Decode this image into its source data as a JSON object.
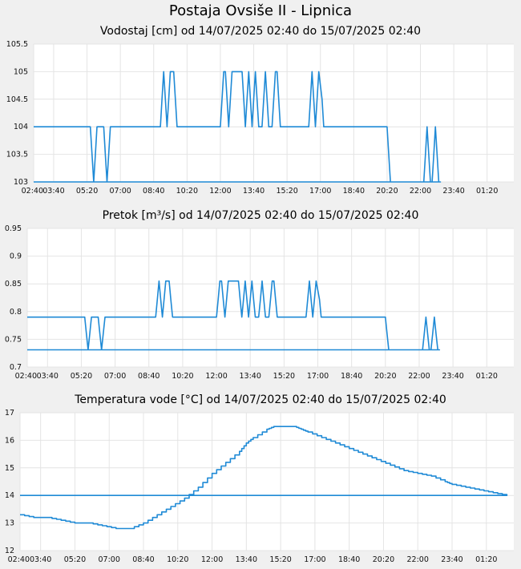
{
  "page": {
    "title": "Postaja Ovsiše II - Lipnica"
  },
  "chart_data": [
    {
      "type": "line",
      "title": "Vodostaj [cm] od 14/07/2025 02:40 do 15/07/2025 02:40",
      "xlabel": "",
      "ylabel": "",
      "ylim": [
        103,
        105.5
      ],
      "y_ticks": [
        "103",
        "103.5",
        "104",
        "104.5",
        "105",
        "105.5"
      ],
      "x_ticks": [
        "03:40",
        "05:20",
        "07:00",
        "08:40",
        "10:20",
        "12:00",
        "13:40",
        "15:20",
        "17:00",
        "18:40",
        "20:20",
        "22:00",
        "23:40",
        "01:20",
        "02:40"
      ],
      "grid": true,
      "color": "#1f8ad6",
      "series": [
        {
          "x": [
            "02:40",
            "05:30",
            "05:35",
            "05:40",
            "05:45",
            "05:50",
            "06:10",
            "06:15",
            "06:20",
            "06:25",
            "06:30",
            "09:00",
            "09:05",
            "09:10",
            "09:15",
            "09:20",
            "09:25",
            "09:30",
            "09:35",
            "09:40",
            "09:45",
            "09:50",
            "09:55",
            "12:00",
            "12:05",
            "12:10",
            "12:15",
            "12:20",
            "12:25",
            "12:30",
            "12:35",
            "12:40",
            "13:05",
            "13:10",
            "13:15",
            "13:20",
            "13:25",
            "13:30",
            "13:35",
            "13:40",
            "13:45",
            "13:50",
            "13:55",
            "14:00",
            "14:05",
            "14:10",
            "14:15",
            "14:20",
            "14:25",
            "14:30",
            "14:35",
            "14:40",
            "14:45",
            "14:50",
            "14:55",
            "15:00",
            "15:05",
            "15:10",
            "16:25",
            "16:30",
            "16:35",
            "16:40",
            "16:45",
            "16:50",
            "16:55",
            "17:05",
            "17:10",
            "17:15",
            "17:20",
            "17:25",
            "20:20",
            "20:25",
            "20:30",
            "20:35",
            "22:10",
            "22:15",
            "22:20",
            "22:25",
            "22:30",
            "22:35",
            "22:40",
            "22:45",
            "22:50",
            "22:55",
            "23:00",
            "02:40"
          ],
          "y": [
            104,
            104,
            103.5,
            103,
            103.5,
            104,
            104,
            103.5,
            103,
            103.5,
            104,
            104,
            104.5,
            105,
            104.5,
            104,
            104.5,
            105,
            105,
            105,
            104.5,
            104,
            104,
            104,
            104.5,
            105,
            105,
            104.5,
            104,
            104.5,
            105,
            105,
            105,
            104.5,
            104,
            104.5,
            105,
            104.5,
            104,
            104.5,
            105,
            104.5,
            104,
            104,
            104,
            104.5,
            105,
            104.5,
            104,
            104,
            104,
            104.5,
            105,
            105,
            104.5,
            104,
            104,
            104,
            104,
            104.5,
            105,
            104.5,
            104,
            104.5,
            105,
            104.5,
            104,
            104,
            104,
            104,
            104,
            103.5,
            103,
            103,
            103,
            103.5,
            104,
            103.5,
            103,
            103,
            103.5,
            104,
            103.5,
            103,
            103,
            103
          ]
        }
      ]
    },
    {
      "type": "line",
      "title": "Pretok [m³/s] od 14/07/2025 02:40 do 15/07/2025 02:40",
      "xlabel": "",
      "ylabel": "",
      "ylim": [
        0.7,
        0.95
      ],
      "y_ticks": [
        "0.7",
        "0.75",
        "0.8",
        "0.85",
        "0.9",
        "0.95"
      ],
      "x_ticks": [
        "03:40",
        "05:20",
        "07:00",
        "08:40",
        "10:20",
        "12:00",
        "13:40",
        "15:20",
        "17:00",
        "18:40",
        "20:20",
        "22:00",
        "23:40",
        "01:20",
        "02:40"
      ],
      "grid": true,
      "color": "#1f8ad6",
      "series": [
        {
          "x": [
            "02:40",
            "05:30",
            "05:35",
            "05:40",
            "05:45",
            "05:50",
            "06:10",
            "06:15",
            "06:20",
            "06:25",
            "06:30",
            "09:00",
            "09:05",
            "09:10",
            "09:15",
            "09:20",
            "09:25",
            "09:30",
            "09:35",
            "09:40",
            "09:45",
            "09:50",
            "09:55",
            "12:00",
            "12:05",
            "12:10",
            "12:15",
            "12:20",
            "12:25",
            "12:30",
            "12:35",
            "12:40",
            "13:05",
            "13:10",
            "13:15",
            "13:20",
            "13:25",
            "13:30",
            "13:35",
            "13:40",
            "13:45",
            "13:50",
            "13:55",
            "14:00",
            "14:05",
            "14:10",
            "14:15",
            "14:20",
            "14:25",
            "14:30",
            "14:35",
            "14:40",
            "14:45",
            "14:50",
            "14:55",
            "15:00",
            "15:05",
            "15:10",
            "16:25",
            "16:30",
            "16:35",
            "16:40",
            "16:45",
            "16:50",
            "16:55",
            "17:05",
            "17:10",
            "17:15",
            "17:20",
            "17:25",
            "20:20",
            "20:25",
            "20:30",
            "20:35",
            "22:10",
            "22:15",
            "22:20",
            "22:25",
            "22:30",
            "22:35",
            "22:40",
            "22:45",
            "22:50",
            "22:55",
            "23:00",
            "02:40"
          ],
          "y": [
            0.79,
            0.79,
            0.76,
            0.731,
            0.76,
            0.79,
            0.79,
            0.76,
            0.731,
            0.76,
            0.79,
            0.79,
            0.822,
            0.855,
            0.822,
            0.79,
            0.822,
            0.855,
            0.855,
            0.855,
            0.822,
            0.79,
            0.79,
            0.79,
            0.822,
            0.855,
            0.855,
            0.822,
            0.79,
            0.822,
            0.855,
            0.855,
            0.855,
            0.822,
            0.79,
            0.822,
            0.855,
            0.822,
            0.79,
            0.822,
            0.855,
            0.822,
            0.79,
            0.79,
            0.79,
            0.822,
            0.855,
            0.822,
            0.79,
            0.79,
            0.79,
            0.822,
            0.855,
            0.855,
            0.822,
            0.79,
            0.79,
            0.79,
            0.79,
            0.822,
            0.855,
            0.822,
            0.79,
            0.822,
            0.855,
            0.822,
            0.79,
            0.79,
            0.79,
            0.79,
            0.79,
            0.76,
            0.731,
            0.731,
            0.731,
            0.76,
            0.79,
            0.76,
            0.731,
            0.731,
            0.76,
            0.79,
            0.76,
            0.731,
            0.731,
            0.731
          ]
        }
      ]
    },
    {
      "type": "line",
      "title": "Temperatura vode [°C] od 14/07/2025 02:40 do 15/07/2025 02:40",
      "xlabel": "",
      "ylabel": "",
      "ylim": [
        12,
        17
      ],
      "y_ticks": [
        "12",
        "13",
        "14",
        "15",
        "16",
        "17"
      ],
      "x_ticks": [
        "03:40",
        "05:20",
        "07:00",
        "08:40",
        "10:20",
        "12:00",
        "13:40",
        "15:20",
        "17:00",
        "18:40",
        "20:20",
        "22:00",
        "23:40",
        "01:20",
        "02:40"
      ],
      "grid": true,
      "color": "#1f8ad6",
      "series": [
        {
          "x": [
            "02:40",
            "03:20",
            "04:00",
            "04:40",
            "05:20",
            "06:00",
            "06:40",
            "07:20",
            "08:00",
            "08:40",
            "09:20",
            "10:00",
            "10:40",
            "11:20",
            "12:00",
            "12:40",
            "13:20",
            "13:40",
            "14:00",
            "14:40",
            "15:00",
            "15:20",
            "15:40",
            "16:00",
            "16:20",
            "16:40",
            "17:20",
            "18:00",
            "18:40",
            "19:20",
            "20:00",
            "20:40",
            "21:20",
            "22:00",
            "22:40",
            "23:20",
            "23:40",
            "00:20",
            "01:00",
            "01:40",
            "02:20",
            "02:40"
          ],
          "y": [
            13.3,
            13.2,
            13.2,
            13.1,
            13.0,
            13.0,
            12.9,
            12.8,
            12.8,
            13.0,
            13.3,
            13.6,
            13.9,
            14.3,
            14.8,
            15.2,
            15.6,
            15.9,
            16.1,
            16.4,
            16.5,
            16.5,
            16.5,
            16.5,
            16.4,
            16.3,
            16.1,
            15.9,
            15.7,
            15.5,
            15.3,
            15.1,
            14.9,
            14.8,
            14.7,
            14.5,
            14.4,
            14.3,
            14.2,
            14.1,
            14.0,
            14.0
          ]
        }
      ]
    }
  ]
}
